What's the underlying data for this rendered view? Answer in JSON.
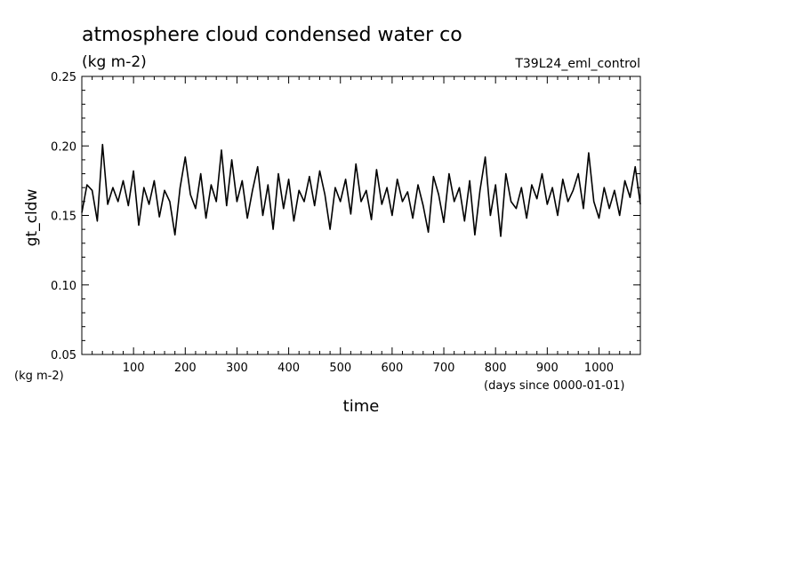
{
  "chart_data": {
    "type": "line",
    "title": "atmosphere cloud condensed water co",
    "units_label": "(kg m-2)",
    "run_label": "T39L24_eml_control",
    "xlabel": "time",
    "x_units": "(days since 0000-01-01)",
    "ylabel": "gt_cldw",
    "y_units": "(kg m-2)",
    "xlim": [
      0,
      1080
    ],
    "ylim": [
      0.05,
      0.25
    ],
    "x_ticks": [
      100,
      200,
      300,
      400,
      500,
      600,
      700,
      800,
      900,
      1000
    ],
    "x_tick_labels": [
      "100",
      "200",
      "300",
      "400",
      "500",
      "600",
      "700",
      "800",
      "900",
      "1000"
    ],
    "y_ticks": [
      0.05,
      0.1,
      0.15,
      0.2,
      0.25
    ],
    "y_tick_labels": [
      "0.05",
      "0.10",
      "0.15",
      "0.20",
      "0.25"
    ],
    "grid": false,
    "line_color": "#000000",
    "series": [
      {
        "x": [
          0,
          10,
          20,
          30,
          40,
          50,
          60,
          70,
          80,
          90,
          100,
          110,
          120,
          130,
          140,
          150,
          160,
          170,
          180,
          190,
          200,
          210,
          220,
          230,
          240,
          250,
          260,
          270,
          280,
          290,
          300,
          310,
          320,
          330,
          340,
          350,
          360,
          370,
          380,
          390,
          400,
          410,
          420,
          430,
          440,
          450,
          460,
          470,
          480,
          490,
          500,
          510,
          520,
          530,
          540,
          550,
          560,
          570,
          580,
          590,
          600,
          610,
          620,
          630,
          640,
          650,
          660,
          670,
          680,
          690,
          700,
          710,
          720,
          730,
          740,
          750,
          760,
          770,
          780,
          790,
          800,
          810,
          820,
          830,
          840,
          850,
          860,
          870,
          880,
          890,
          900,
          910,
          920,
          930,
          940,
          950,
          960,
          970,
          980,
          990,
          1000,
          1010,
          1020,
          1030,
          1040,
          1050,
          1060,
          1070,
          1080
        ],
        "y": [
          0.152,
          0.172,
          0.168,
          0.146,
          0.201,
          0.158,
          0.17,
          0.16,
          0.175,
          0.157,
          0.182,
          0.143,
          0.17,
          0.158,
          0.175,
          0.149,
          0.168,
          0.16,
          0.136,
          0.17,
          0.192,
          0.165,
          0.155,
          0.18,
          0.148,
          0.172,
          0.16,
          0.197,
          0.157,
          0.19,
          0.16,
          0.175,
          0.148,
          0.168,
          0.185,
          0.15,
          0.172,
          0.14,
          0.18,
          0.155,
          0.176,
          0.146,
          0.168,
          0.16,
          0.178,
          0.157,
          0.182,
          0.165,
          0.14,
          0.17,
          0.16,
          0.176,
          0.151,
          0.187,
          0.16,
          0.168,
          0.147,
          0.183,
          0.158,
          0.17,
          0.15,
          0.176,
          0.16,
          0.167,
          0.148,
          0.172,
          0.157,
          0.138,
          0.178,
          0.165,
          0.145,
          0.18,
          0.16,
          0.17,
          0.146,
          0.175,
          0.136,
          0.168,
          0.192,
          0.15,
          0.172,
          0.135,
          0.18,
          0.16,
          0.155,
          0.17,
          0.148,
          0.172,
          0.162,
          0.18,
          0.158,
          0.17,
          0.15,
          0.176,
          0.16,
          0.168,
          0.18,
          0.155,
          0.195,
          0.16,
          0.148,
          0.17,
          0.155,
          0.168,
          0.15,
          0.175,
          0.163,
          0.185,
          0.158
        ]
      }
    ]
  }
}
